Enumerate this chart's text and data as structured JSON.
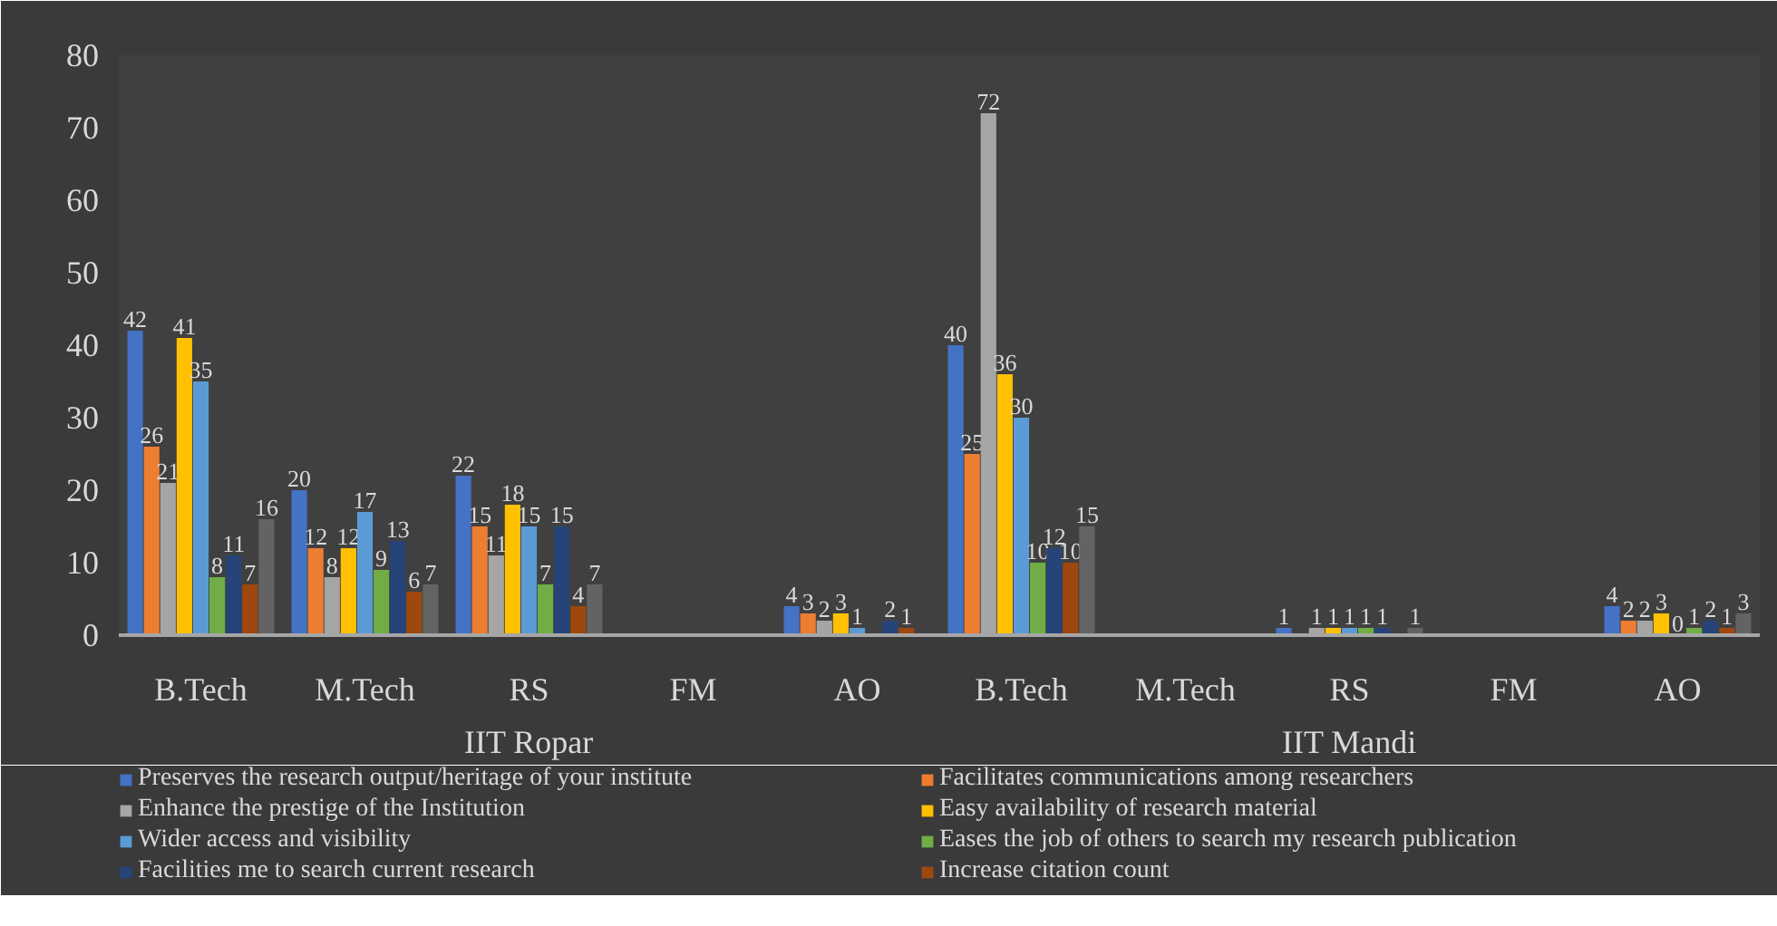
{
  "chart_data": {
    "type": "bar",
    "categories": [
      "B.Tech",
      "M.Tech",
      "RS",
      "FM",
      "AO",
      "B.Tech",
      "M.Tech",
      "RS",
      "FM",
      "AO"
    ],
    "annotations": [
      "IIT Ropar",
      "IIT Mandi"
    ],
    "ylim": [
      0,
      80
    ],
    "yticks": [
      0,
      10,
      20,
      30,
      40,
      50,
      60,
      70,
      80
    ],
    "grid": false,
    "legend": "bottom",
    "data_labels": true,
    "series": [
      {
        "name": "Preserves the research output/heritage of your institute",
        "color": "#4472c4",
        "values": [
          42,
          20,
          22,
          null,
          4,
          40,
          null,
          1,
          null,
          4
        ]
      },
      {
        "name": "Facilitates communications among researchers",
        "color": "#ed7d31",
        "values": [
          26,
          12,
          15,
          null,
          3,
          25,
          null,
          null,
          null,
          2
        ]
      },
      {
        "name": "Enhance the prestige of the Institution",
        "color": "#a5a5a5",
        "values": [
          21,
          8,
          11,
          null,
          2,
          72,
          null,
          1,
          null,
          2
        ]
      },
      {
        "name": "Easy availability of research material",
        "color": "#ffc000",
        "values": [
          41,
          12,
          18,
          null,
          3,
          36,
          null,
          1,
          null,
          3
        ]
      },
      {
        "name": "Wider access and visibility",
        "color": "#5b9bd5",
        "values": [
          35,
          17,
          15,
          null,
          1,
          30,
          null,
          1,
          null,
          0
        ]
      },
      {
        "name": "Eases the job of others to search my research publication",
        "color": "#70ad47",
        "values": [
          8,
          9,
          7,
          null,
          null,
          10,
          null,
          1,
          null,
          1
        ]
      },
      {
        "name": "Facilities me to search current research",
        "color": "#264478",
        "values": [
          11,
          13,
          15,
          null,
          2,
          12,
          null,
          1,
          null,
          2
        ]
      },
      {
        "name": "Increase citation count",
        "color": "#9e480e",
        "values": [
          7,
          6,
          4,
          null,
          1,
          10,
          null,
          null,
          null,
          1
        ]
      },
      {
        "color": "#636363",
        "values": [
          16,
          7,
          7,
          null,
          null,
          15,
          null,
          1,
          null,
          3
        ]
      }
    ]
  }
}
